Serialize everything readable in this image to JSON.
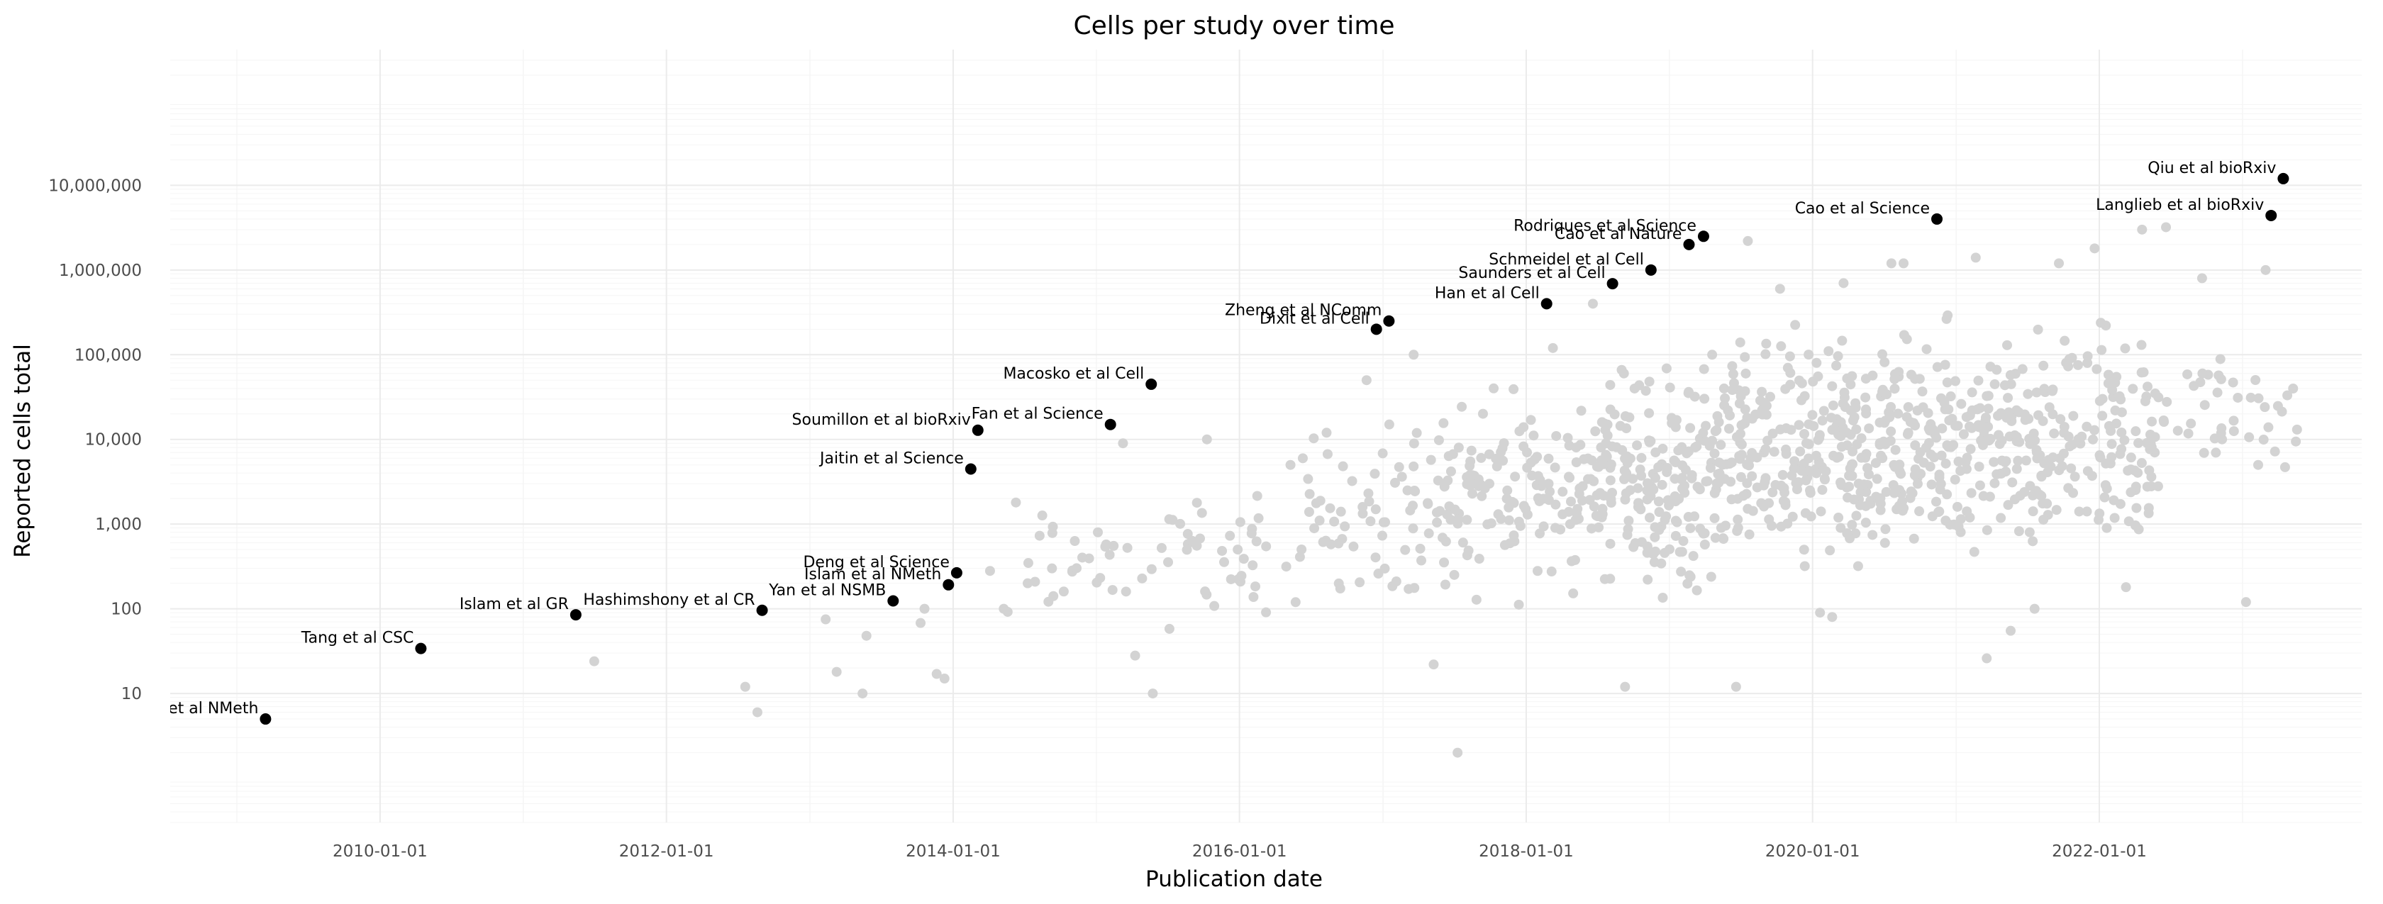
{
  "chart_data": {
    "type": "scatter",
    "title": "Cells per study over time",
    "xlabel": "Publication date",
    "ylabel": "Reported cells total",
    "y_scale": "log10",
    "xlim": [
      "2008-07-15",
      "2023-11-01"
    ],
    "ylim": [
      0.3,
      400000000
    ],
    "x_ticks": [
      "2010-01-01",
      "2012-01-01",
      "2014-01-01",
      "2016-01-01",
      "2018-01-01",
      "2020-01-01",
      "2022-01-01"
    ],
    "y_ticks": [
      {
        "value": 10,
        "label": "10"
      },
      {
        "value": 100,
        "label": "100"
      },
      {
        "value": 1000,
        "label": "1,000"
      },
      {
        "value": 10000,
        "label": "10,000"
      },
      {
        "value": 100000,
        "label": "100,000"
      },
      {
        "value": 1000000,
        "label": "1,000,000"
      },
      {
        "value": 10000000,
        "label": "10,000,000"
      }
    ],
    "grid": true,
    "colors": {
      "highlight": "#000000",
      "background_points": "#d3d3d3",
      "grid_major": "#ebebeb",
      "grid_minor": "#f5f5f5"
    },
    "highlighted": [
      {
        "label": "Tang et al NMeth",
        "date": "2009-03-15",
        "cells": 5
      },
      {
        "label": "Tang et al CSC",
        "date": "2010-04-15",
        "cells": 34
      },
      {
        "label": "Islam et al GR",
        "date": "2011-05-15",
        "cells": 85
      },
      {
        "label": "Hashimshony et al CR",
        "date": "2012-09-01",
        "cells": 96
      },
      {
        "label": "Yan et al NSMB",
        "date": "2013-08-01",
        "cells": 124
      },
      {
        "label": "Islam et al NMeth",
        "date": "2013-12-20",
        "cells": 192
      },
      {
        "label": "Deng et al Science",
        "date": "2014-01-10",
        "cells": 266
      },
      {
        "label": "Jaitin et al Science",
        "date": "2014-02-15",
        "cells": 4468
      },
      {
        "label": "Soumillon et al bioRxiv",
        "date": "2014-03-05",
        "cells": 12832
      },
      {
        "label": "Fan et al Science",
        "date": "2015-02-06",
        "cells": 15000
      },
      {
        "label": "Macosko et al Cell",
        "date": "2015-05-21",
        "cells": 44808
      },
      {
        "label": "Dixit et al Cell",
        "date": "2016-12-15",
        "cells": 200000
      },
      {
        "label": "Zheng et al NComm",
        "date": "2017-01-16",
        "cells": 250000
      },
      {
        "label": "Han et al Cell",
        "date": "2018-02-22",
        "cells": 400000
      },
      {
        "label": "Saunders et al Cell",
        "date": "2018-08-09",
        "cells": 690000
      },
      {
        "label": "Schmeidel et al Cell",
        "date": "2018-11-15",
        "cells": 1000000
      },
      {
        "label": "Cao et al Nature",
        "date": "2019-02-20",
        "cells": 2000000
      },
      {
        "label": "Rodriques et al Science",
        "date": "2019-03-29",
        "cells": 2500000
      },
      {
        "label": "Cao et al Science",
        "date": "2020-11-13",
        "cells": 4000000
      },
      {
        "label": "Langlieb et al bioRxiv",
        "date": "2023-03-15",
        "cells": 4400000
      },
      {
        "label": "Qiu et al bioRxiv",
        "date": "2023-04-15",
        "cells": 12000000
      }
    ],
    "background_points": [
      {
        "date": "2011-07-01",
        "cells": 24
      },
      {
        "date": "2012-07-20",
        "cells": 12
      },
      {
        "date": "2012-08-20",
        "cells": 6
      },
      {
        "date": "2013-02-10",
        "cells": 75
      },
      {
        "date": "2013-03-10",
        "cells": 18
      },
      {
        "date": "2013-05-15",
        "cells": 10
      },
      {
        "date": "2013-05-25",
        "cells": 48
      },
      {
        "date": "2013-10-10",
        "cells": 68
      },
      {
        "date": "2013-10-20",
        "cells": 100
      },
      {
        "date": "2013-11-20",
        "cells": 17
      },
      {
        "date": "2013-12-10",
        "cells": 15
      },
      {
        "date": "2014-04-05",
        "cells": 280
      },
      {
        "date": "2014-05-10",
        "cells": 100
      },
      {
        "date": "2014-05-20",
        "cells": 92
      },
      {
        "date": "2014-06-10",
        "cells": 1800
      },
      {
        "date": "2014-07-10",
        "cells": 200
      },
      {
        "date": "2014-09-10",
        "cells": 300
      },
      {
        "date": "2014-10-10",
        "cells": 160
      },
      {
        "date": "2015-01-05",
        "cells": 800
      },
      {
        "date": "2015-03-10",
        "cells": 9000
      },
      {
        "date": "2015-04-10",
        "cells": 28
      },
      {
        "date": "2015-05-25",
        "cells": 10
      },
      {
        "date": "2015-10-10",
        "cells": 10000
      },
      {
        "date": "2016-05-10",
        "cells": 5000
      },
      {
        "date": "2016-08-10",
        "cells": 12000
      },
      {
        "date": "2016-11-20",
        "cells": 50000
      },
      {
        "date": "2017-03-20",
        "cells": 100000
      },
      {
        "date": "2017-05-10",
        "cells": 22
      },
      {
        "date": "2017-07-10",
        "cells": 2
      },
      {
        "date": "2017-10-10",
        "cells": 40000
      },
      {
        "date": "2018-03-10",
        "cells": 120000
      },
      {
        "date": "2018-06-20",
        "cells": 400000
      },
      {
        "date": "2018-09-10",
        "cells": 12
      },
      {
        "date": "2019-04-20",
        "cells": 100000
      },
      {
        "date": "2019-06-20",
        "cells": 12
      },
      {
        "date": "2019-07-20",
        "cells": 2200000
      },
      {
        "date": "2019-10-10",
        "cells": 600000
      },
      {
        "date": "2020-01-20",
        "cells": 90
      },
      {
        "date": "2020-02-20",
        "cells": 80
      },
      {
        "date": "2020-03-20",
        "cells": 700000
      },
      {
        "date": "2020-07-20",
        "cells": 1200000
      },
      {
        "date": "2020-08-20",
        "cells": 1200000
      },
      {
        "date": "2021-02-20",
        "cells": 1400000
      },
      {
        "date": "2021-03-20",
        "cells": 26
      },
      {
        "date": "2021-05-20",
        "cells": 55
      },
      {
        "date": "2021-07-20",
        "cells": 100
      },
      {
        "date": "2021-09-20",
        "cells": 1200000
      },
      {
        "date": "2021-12-20",
        "cells": 1800000
      },
      {
        "date": "2022-01-20",
        "cells": 900
      },
      {
        "date": "2022-03-10",
        "cells": 180
      },
      {
        "date": "2022-04-20",
        "cells": 3000000
      },
      {
        "date": "2022-06-20",
        "cells": 3200000
      },
      {
        "date": "2022-09-20",
        "cells": 800000
      },
      {
        "date": "2022-11-10",
        "cells": 10000
      },
      {
        "date": "2023-01-10",
        "cells": 120
      },
      {
        "date": "2023-03-01",
        "cells": 1000000
      },
      {
        "date": "2023-02-10",
        "cells": 5000
      }
    ],
    "background_cloud": {
      "note": "dense cloud of additional light-grey study points",
      "segments": [
        {
          "from": "2014-06-01",
          "to": "2015-06-01",
          "log10_min": 1.6,
          "log10_max": 3.4,
          "count": 25
        },
        {
          "from": "2015-06-01",
          "to": "2016-06-01",
          "log10_min": 1.5,
          "log10_max": 3.6,
          "count": 40
        },
        {
          "from": "2016-06-01",
          "to": "2017-06-01",
          "log10_min": 1.8,
          "log10_max": 4.6,
          "count": 70
        },
        {
          "from": "2017-06-01",
          "to": "2018-06-01",
          "log10_min": 1.8,
          "log10_max": 4.9,
          "count": 130
        },
        {
          "from": "2018-06-01",
          "to": "2019-06-01",
          "log10_min": 1.9,
          "log10_max": 5.2,
          "count": 220
        },
        {
          "from": "2019-06-01",
          "to": "2020-06-01",
          "log10_min": 2.0,
          "log10_max": 5.6,
          "count": 230
        },
        {
          "from": "2020-06-01",
          "to": "2021-06-01",
          "log10_min": 2.1,
          "log10_max": 5.7,
          "count": 210
        },
        {
          "from": "2021-06-01",
          "to": "2022-06-01",
          "log10_min": 2.3,
          "log10_max": 5.8,
          "count": 170
        },
        {
          "from": "2022-06-01",
          "to": "2023-06-01",
          "log10_min": 3.4,
          "log10_max": 5.3,
          "count": 40
        }
      ]
    }
  }
}
